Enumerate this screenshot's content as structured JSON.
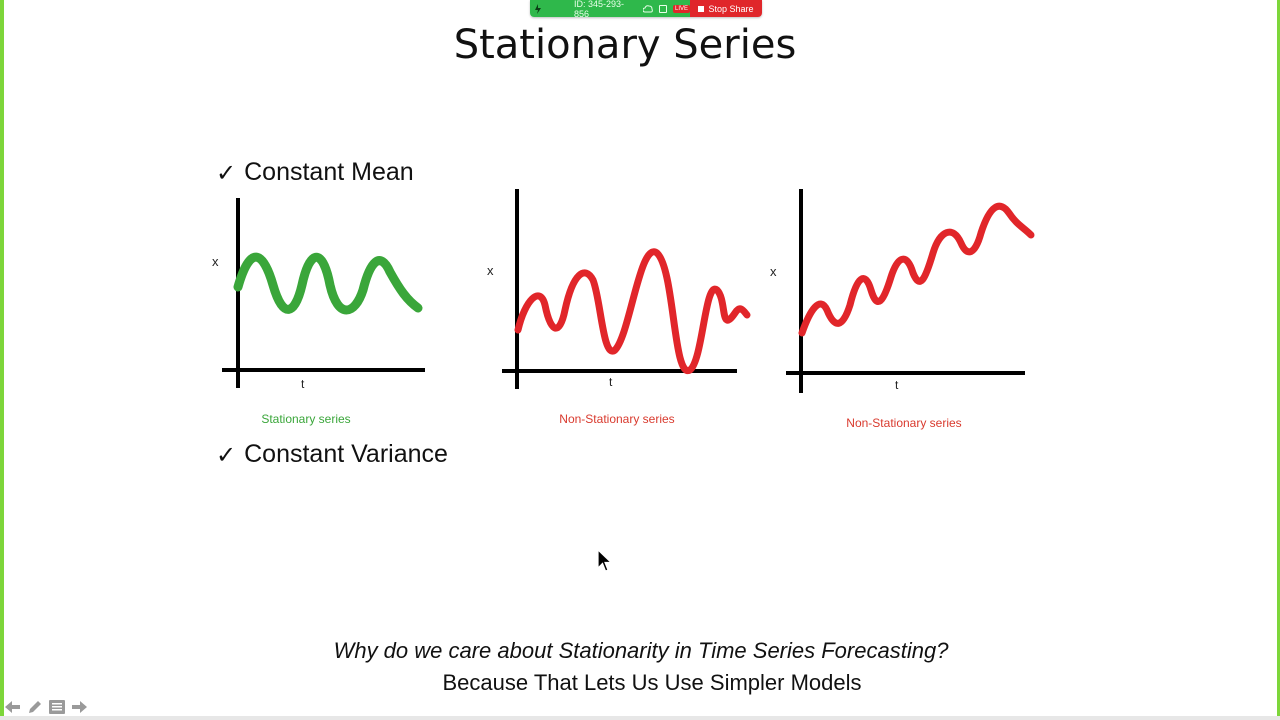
{
  "share_bar": {
    "meeting_id": "ID: 345-293-856",
    "live_badge": "LIVE",
    "stop_label": "Stop Share"
  },
  "slide": {
    "title": "Stationary Series",
    "bullets": [
      "Constant Mean",
      "Constant Variance"
    ],
    "check_symbol": "✓",
    "question": "Why do we care about Stationarity in Time Series Forecasting?",
    "answer": "Because That Lets Us Use Simpler Models"
  },
  "charts": [
    {
      "caption": "Stationary series",
      "x_label": "x",
      "t_label": "t",
      "color": "#3aa63a"
    },
    {
      "caption": "Non-Stationary series",
      "x_label": "x",
      "t_label": "t",
      "color": "#e1262a"
    },
    {
      "caption": "Non-Stationary series",
      "x_label": "x",
      "t_label": "t",
      "color": "#e1262a"
    }
  ],
  "colors": {
    "frame": "#7dd63a",
    "share_green": "#2fb84b",
    "share_red": "#e0262a"
  },
  "icons": {
    "cursor": "mouse-pointer-icon",
    "nav": [
      "arrow-left-icon",
      "pencil-icon",
      "menu-icon",
      "arrow-right-icon"
    ]
  }
}
